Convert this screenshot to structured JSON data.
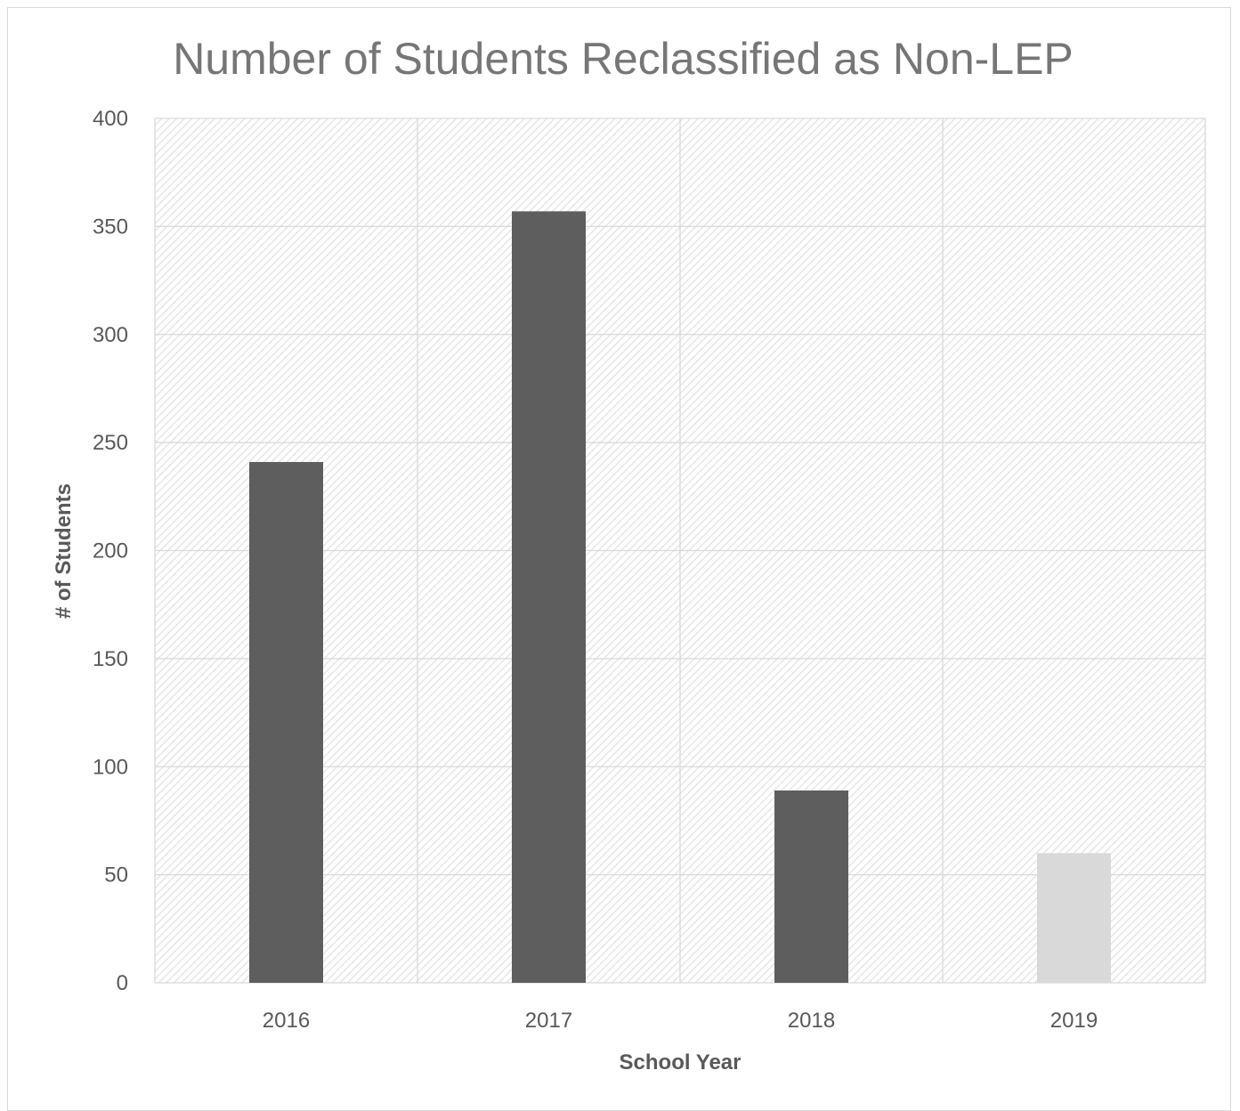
{
  "chart_data": {
    "type": "bar",
    "title": "Number of Students Reclassified as Non-LEP",
    "xlabel": "School Year",
    "ylabel": "# of Students",
    "categories": [
      "2016",
      "2017",
      "2018",
      "2019"
    ],
    "values": [
      241,
      357,
      89,
      60
    ],
    "bar_colors": [
      "#5e5e5e",
      "#5e5e5e",
      "#5e5e5e",
      "#d9d9d9"
    ],
    "ylim": [
      0,
      400
    ],
    "yticks": [
      0,
      50,
      100,
      150,
      200,
      250,
      300,
      350,
      400
    ],
    "grid": true,
    "plot_background": "hatched light gray",
    "legend": "none"
  }
}
